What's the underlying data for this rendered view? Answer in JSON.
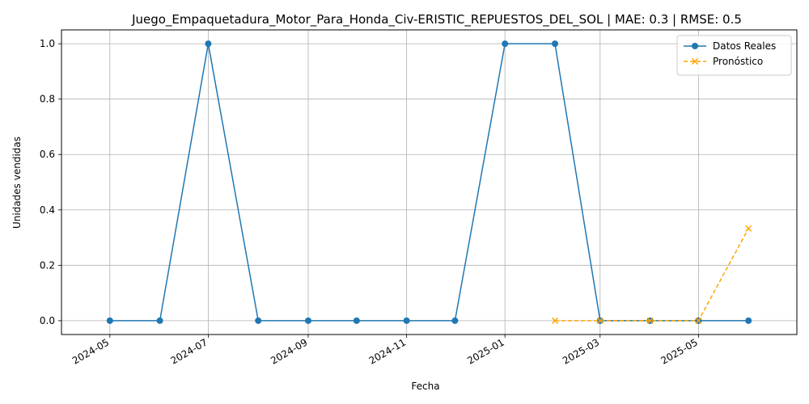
{
  "chart_data": {
    "type": "line",
    "title": "Juego_Empaquetadura_Motor_Para_Honda_Civ-ERISTIC_REPUESTOS_DEL_SOL | MAE: 0.3 | RMSE: 0.5",
    "xlabel": "Fecha",
    "ylabel": "Unidades vendidas",
    "xlim": [
      "2024-04-01",
      "2025-07-01"
    ],
    "ylim": [
      -0.05,
      1.05
    ],
    "x_ticks": [
      "2024-05",
      "2024-07",
      "2024-09",
      "2024-11",
      "2025-01",
      "2025-03",
      "2025-05"
    ],
    "y_ticks": [
      "0.0",
      "0.2",
      "0.4",
      "0.6",
      "0.8",
      "1.0"
    ],
    "grid": true,
    "legend_position": "top-right",
    "series": [
      {
        "name": "Datos Reales",
        "color": "#1f77b4",
        "style": "solid",
        "marker": "circle",
        "x": [
          "2024-05-01",
          "2024-06-01",
          "2024-07-01",
          "2024-08-01",
          "2024-09-01",
          "2024-10-01",
          "2024-11-01",
          "2024-12-01",
          "2025-01-01",
          "2025-02-01",
          "2025-03-01",
          "2025-04-01",
          "2025-05-01",
          "2025-06-01"
        ],
        "values": [
          0,
          0,
          1,
          0,
          0,
          0,
          0,
          0,
          1,
          1,
          0,
          0,
          0,
          0
        ]
      },
      {
        "name": "Pronóstico",
        "color": "#ffa500",
        "style": "dashed",
        "marker": "x",
        "x": [
          "2025-02-01",
          "2025-03-01",
          "2025-04-01",
          "2025-05-01",
          "2025-06-01"
        ],
        "values": [
          0,
          0,
          0,
          0,
          0.333
        ]
      }
    ]
  }
}
